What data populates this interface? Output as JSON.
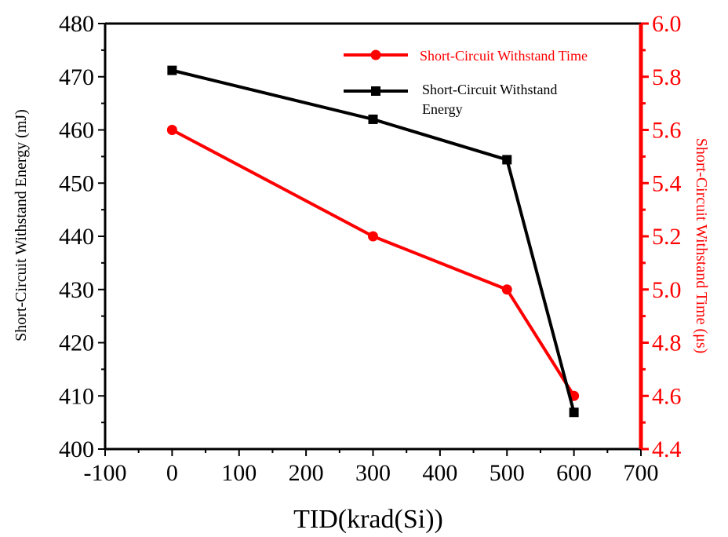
{
  "chart_data": {
    "type": "line",
    "title": "",
    "xlabel": "TID(krad(Si))",
    "ylabel_left": "Short-Circuit Withstand Energy (mJ)",
    "ylabel_right": "Short-Circuit Withstand Time (μs)",
    "xlim": [
      -100,
      700
    ],
    "ylim_left": [
      400,
      480
    ],
    "ylim_right": [
      4.4,
      6.0
    ],
    "x_ticks": [
      "-100",
      "0",
      "100",
      "200",
      "300",
      "400",
      "500",
      "600",
      "700"
    ],
    "y_ticks_left": [
      "400",
      "410",
      "420",
      "430",
      "440",
      "450",
      "460",
      "470",
      "480"
    ],
    "y_ticks_right": [
      "4.4",
      "4.6",
      "4.8",
      "5.0",
      "5.2",
      "5.4",
      "5.6",
      "5.8",
      "6.0"
    ],
    "grid": false,
    "legend_position": "top-right",
    "series": [
      {
        "name": "Short-Circuit Withstand Time",
        "axis": "right",
        "color": "#ff0000",
        "marker": "circle",
        "x": [
          0,
          300,
          500,
          600
        ],
        "values": [
          5.6,
          5.2,
          5.0,
          4.6
        ]
      },
      {
        "name": "Short-Circuit Withstand Energy",
        "axis": "left",
        "color": "#000000",
        "marker": "square",
        "x": [
          0,
          300,
          500,
          600
        ],
        "values": [
          471.2,
          462.0,
          454.4,
          406.9
        ]
      }
    ],
    "axis_colors": {
      "left": "#000000",
      "bottom": "#000000",
      "right": "#ff0000"
    }
  }
}
